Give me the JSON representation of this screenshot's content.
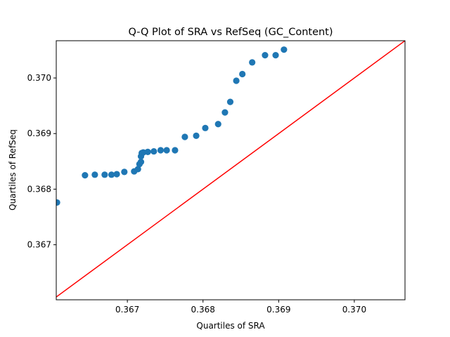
{
  "chart_data": {
    "type": "scatter",
    "title": "Q-Q Plot of SRA vs RefSeq (GC_Content)",
    "xlabel": "Quartiles of SRA",
    "ylabel": "Quartiles of RefSeq",
    "xlim": [
      0.36606,
      0.37067
    ],
    "ylim": [
      0.36601,
      0.37067
    ],
    "xticks": [
      0.367,
      0.368,
      0.369,
      0.37
    ],
    "yticks": [
      0.367,
      0.368,
      0.369,
      0.37
    ],
    "xtick_labels": [
      "0.367",
      "0.368",
      "0.369",
      "0.370"
    ],
    "ytick_labels": [
      "0.367",
      "0.368",
      "0.369",
      "0.370"
    ],
    "grid": false,
    "point_color": "#1f77b4",
    "reference_line": {
      "color": "#ff0000",
      "label": ""
    },
    "series": [
      {
        "points": [
          [
            0.36607,
            0.36776
          ],
          [
            0.36644,
            0.36825
          ],
          [
            0.36657,
            0.36826
          ],
          [
            0.3667,
            0.36826
          ],
          [
            0.36679,
            0.36826
          ],
          [
            0.36686,
            0.36827
          ],
          [
            0.36696,
            0.36831
          ],
          [
            0.36709,
            0.36832
          ],
          [
            0.36714,
            0.36836
          ],
          [
            0.36716,
            0.36845
          ],
          [
            0.36718,
            0.36849
          ],
          [
            0.36718,
            0.36859
          ],
          [
            0.36719,
            0.36865
          ],
          [
            0.36721,
            0.36866
          ],
          [
            0.36727,
            0.36867
          ],
          [
            0.36735,
            0.36868
          ],
          [
            0.36744,
            0.3687
          ],
          [
            0.36752,
            0.3687
          ],
          [
            0.36763,
            0.3687
          ],
          [
            0.36776,
            0.36894
          ],
          [
            0.36791,
            0.36896
          ],
          [
            0.36803,
            0.3691
          ],
          [
            0.3682,
            0.36917
          ],
          [
            0.36829,
            0.36938
          ],
          [
            0.36836,
            0.36957
          ],
          [
            0.36844,
            0.36995
          ],
          [
            0.36852,
            0.37007
          ],
          [
            0.36865,
            0.37028
          ],
          [
            0.36882,
            0.37041
          ],
          [
            0.36896,
            0.37041
          ],
          [
            0.36907,
            0.37051
          ]
        ]
      }
    ]
  }
}
